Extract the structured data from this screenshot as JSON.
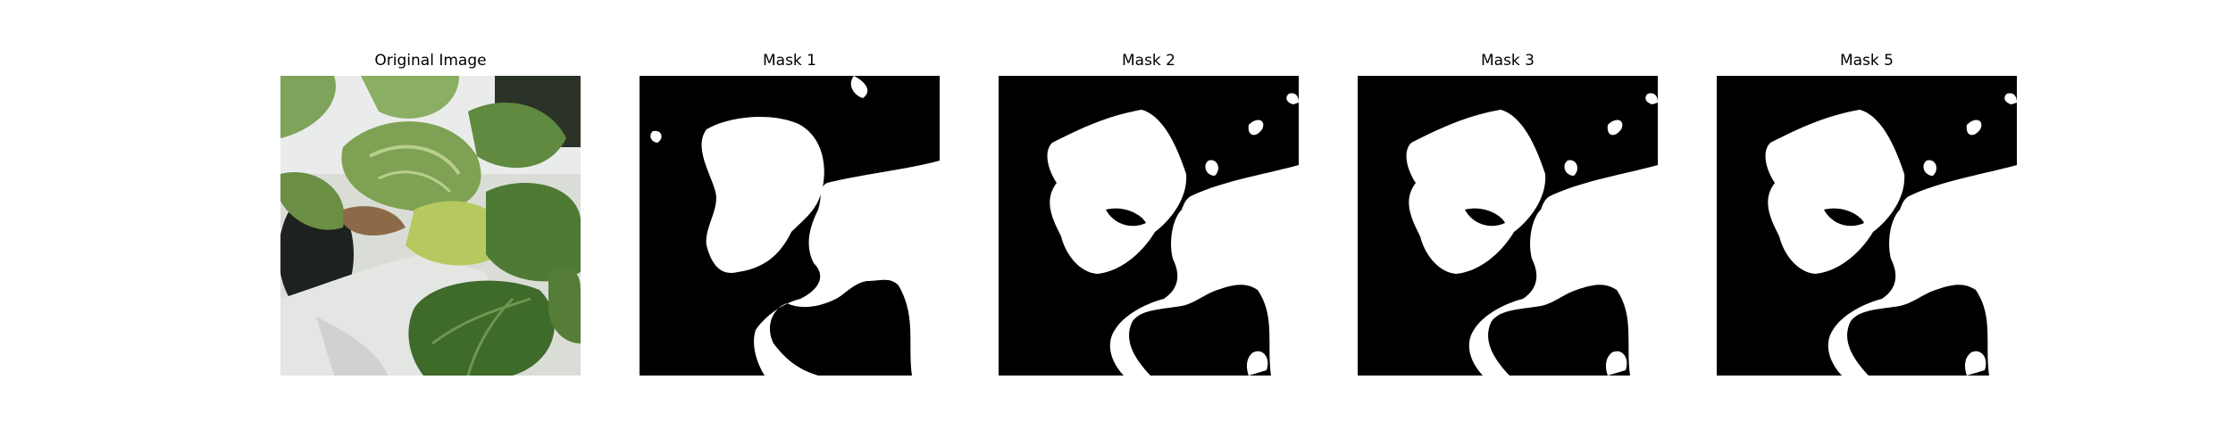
{
  "panels": [
    {
      "title": "Original Image",
      "kind": "photo"
    },
    {
      "title": "Mask 1",
      "kind": "mask"
    },
    {
      "title": "Mask 2",
      "kind": "mask"
    },
    {
      "title": "Mask 3",
      "kind": "mask"
    },
    {
      "title": "Mask 5",
      "kind": "mask"
    }
  ],
  "colors": {
    "mask_background": "#000000",
    "mask_foreground": "#ffffff",
    "leaf_dark": "#3f6a2c",
    "leaf_mid": "#6f9a4c",
    "leaf_light": "#a7c27a",
    "pot": "#e2e5e2"
  }
}
